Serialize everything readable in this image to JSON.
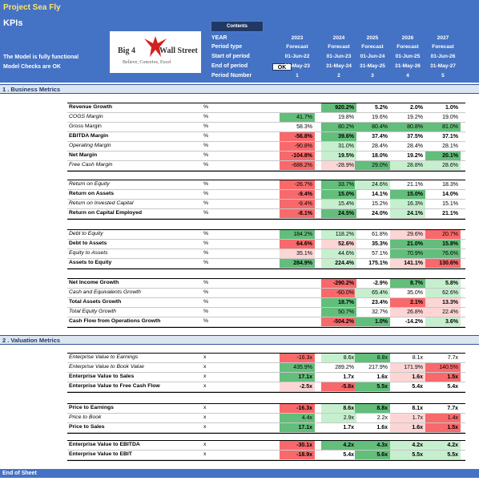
{
  "header": {
    "project": "Project Sea Fly",
    "title": "KPIs",
    "note1": "The Model is fully functional",
    "note2": "Model Checks are OK",
    "contents_button": "Contents",
    "ok_badge": "OK",
    "logo": {
      "left": "Big 4",
      "right": "Wall Street",
      "tagline": "Believe, Conceive, Excel"
    },
    "period_labels": [
      "YEAR",
      "Period type",
      "Start of period",
      "End of period",
      "Period Number"
    ],
    "periods": [
      {
        "year": "2023",
        "type": "Forecast",
        "start": "01-Jun-22",
        "end": "31-May-23",
        "num": "1"
      },
      {
        "year": "2024",
        "type": "Forecast",
        "start": "01-Jun-23",
        "end": "31-May-24",
        "num": "2"
      },
      {
        "year": "2025",
        "type": "Forecast",
        "start": "01-Jun-24",
        "end": "31-May-25",
        "num": "3"
      },
      {
        "year": "2026",
        "type": "Forecast",
        "start": "01-Jun-25",
        "end": "31-May-26",
        "num": "4"
      },
      {
        "year": "2027",
        "type": "Forecast",
        "start": "01-Jun-26",
        "end": "31-May-27",
        "num": "5"
      }
    ]
  },
  "colors": {
    "header_bg": "#4472c4",
    "title_gold": "#ffe36b",
    "good_strong": "#63be7b",
    "good_light": "#c6efce",
    "bad_strong": "#f8696b",
    "bad_light": "#fcd5d5"
  },
  "sections": [
    {
      "title": "1 .  Business Metrics",
      "blocks": [
        {
          "rows": [
            {
              "label": "Revenue Growth",
              "style": "b",
              "unit": "%",
              "values": [
                "",
                "920.2%",
                "5.2%",
                "2.0%",
                "1.0%"
              ],
              "fills": [
                "",
                "G",
                "",
                "",
                ""
              ]
            },
            {
              "label": "COGS Margin",
              "style": "i",
              "unit": "%",
              "values": [
                "41.7%",
                "19.8%",
                "19.6%",
                "19.2%",
                "19.0%"
              ],
              "fills": [
                "G",
                "",
                "",
                "",
                ""
              ]
            },
            {
              "label": "Gross Margin",
              "style": "n",
              "unit": "%",
              "values": [
                "58.3%",
                "80.2%",
                "80.4%",
                "80.8%",
                "81.0%"
              ],
              "fills": [
                "",
                "G",
                "G",
                "G",
                "G"
              ]
            },
            {
              "label": "EBITDA Margin",
              "style": "b",
              "unit": "%",
              "values": [
                "-56.8%",
                "39.6%",
                "37.4%",
                "37.5%",
                "37.1%"
              ],
              "fills": [
                "R",
                "G",
                "",
                "",
                ""
              ]
            },
            {
              "label": "Operating Margin",
              "style": "i",
              "unit": "%",
              "values": [
                "-90.8%",
                "31.0%",
                "28.4%",
                "28.4%",
                "28.1%"
              ],
              "fills": [
                "R",
                "g",
                "",
                "",
                ""
              ]
            },
            {
              "label": "Net Margin",
              "style": "b",
              "unit": "%",
              "values": [
                "-104.8%",
                "19.5%",
                "18.0%",
                "19.2%",
                "20.1%"
              ],
              "fills": [
                "R",
                "g",
                "",
                "",
                "G"
              ]
            },
            {
              "label": "Free Cash Margin",
              "style": "i",
              "unit": "%",
              "values": [
                "-688.2%",
                "-28.9%",
                "29.0%",
                "28.8%",
                "28.6%"
              ],
              "fills": [
                "R",
                "r",
                "G",
                "g",
                "g"
              ]
            }
          ]
        },
        {
          "rows": [
            {
              "label": "Return on Equity",
              "style": "i",
              "unit": "%",
              "values": [
                "-26.7%",
                "33.7%",
                "24.6%",
                "21.1%",
                "18.3%"
              ],
              "fills": [
                "R",
                "G",
                "g",
                "",
                ""
              ]
            },
            {
              "label": "Return on Assets",
              "style": "b",
              "unit": "%",
              "values": [
                "-9.4%",
                "15.0%",
                "14.1%",
                "15.0%",
                "14.0%"
              ],
              "fills": [
                "R",
                "G",
                "",
                "G",
                ""
              ]
            },
            {
              "label": "Return on Invested Capital",
              "style": "i",
              "unit": "%",
              "values": [
                "-9.4%",
                "15.4%",
                "15.2%",
                "16.3%",
                "15.1%"
              ],
              "fills": [
                "R",
                "g",
                "",
                "g",
                ""
              ]
            },
            {
              "label": "Return on Capital Employed",
              "style": "b",
              "unit": "%",
              "values": [
                "-8.1%",
                "24.5%",
                "24.0%",
                "24.1%",
                "21.1%"
              ],
              "fills": [
                "R",
                "G",
                "",
                "g",
                ""
              ]
            }
          ]
        },
        {
          "rows": [
            {
              "label": "Debt to Equity",
              "style": "i",
              "unit": "%",
              "values": [
                "184.2%",
                "118.2%",
                "61.8%",
                "29.6%",
                "20.7%"
              ],
              "fills": [
                "G",
                "g",
                "",
                "r",
                "R"
              ]
            },
            {
              "label": "Debt to Assets",
              "style": "b",
              "unit": "%",
              "values": [
                "64.6%",
                "52.6%",
                "35.3%",
                "21.0%",
                "15.8%"
              ],
              "fills": [
                "R",
                "r",
                "",
                "G",
                "G"
              ]
            },
            {
              "label": "Equity to Assets",
              "style": "i",
              "unit": "%",
              "values": [
                "35.1%",
                "44.6%",
                "57.1%",
                "70.9%",
                "76.6%"
              ],
              "fills": [
                "r",
                "g",
                "",
                "G",
                "G"
              ]
            },
            {
              "label": "Assets to Equity",
              "style": "b",
              "unit": "%",
              "values": [
                "284.9%",
                "224.4%",
                "175.1%",
                "141.1%",
                "130.6%"
              ],
              "fills": [
                "G",
                "g",
                "",
                "r",
                "R"
              ]
            }
          ]
        },
        {
          "rows": [
            {
              "label": "Net Income Growth",
              "style": "b",
              "unit": "%",
              "values": [
                "",
                "-290.2%",
                "-2.9%",
                "8.7%",
                "5.8%"
              ],
              "fills": [
                "",
                "R",
                "",
                "G",
                "g"
              ]
            },
            {
              "label": "Cash and Equivalents Growth",
              "style": "i",
              "unit": "%",
              "values": [
                "",
                "-60.0%",
                "65.4%",
                "35.0%",
                "62.6%"
              ],
              "fills": [
                "",
                "R",
                "g",
                "",
                "g"
              ]
            },
            {
              "label": "Total Assets Growth",
              "style": "b",
              "unit": "%",
              "values": [
                "",
                "18.7%",
                "23.4%",
                "2.1%",
                "13.3%"
              ],
              "fills": [
                "",
                "G",
                "",
                "R",
                "r"
              ]
            },
            {
              "label": "Total Equity Growth",
              "style": "i",
              "unit": "%",
              "values": [
                "",
                "50.7%",
                "32.7%",
                "26.8%",
                "22.4%"
              ],
              "fills": [
                "",
                "G",
                "",
                "r",
                "r"
              ]
            },
            {
              "label": "Cash Flow from Operations Growth",
              "style": "b",
              "unit": "%",
              "values": [
                "",
                "-504.2%",
                "1.0%",
                "-14.2%",
                "3.6%"
              ],
              "fills": [
                "",
                "R",
                "G",
                "",
                "g"
              ]
            }
          ]
        }
      ]
    },
    {
      "title": "2 .  Valuation Metrics",
      "blocks": [
        {
          "rows": [
            {
              "label": "Enterprise Value to Earnings",
              "style": "i",
              "unit": "x",
              "values": [
                "-16.3x",
                "8.6x",
                "8.8x",
                "8.1x",
                "7.7x"
              ],
              "fills": [
                "R",
                "g",
                "G",
                "",
                ""
              ]
            },
            {
              "label": "Enterprise Value to Book Value",
              "style": "i",
              "unit": "x",
              "values": [
                "435.9%",
                "289.2%",
                "217.9%",
                "171.9%",
                "140.5%"
              ],
              "fills": [
                "G",
                "",
                "",
                "r",
                "R"
              ]
            },
            {
              "label": "Enterprise Value to Sales",
              "style": "b",
              "unit": "x",
              "values": [
                "17.1x",
                "1.7x",
                "1.6x",
                "1.6x",
                "1.5x"
              ],
              "fills": [
                "G",
                "",
                "",
                "r",
                "R"
              ]
            },
            {
              "label": "Enterprise Value to Free Cash Flow",
              "style": "b",
              "unit": "x",
              "values": [
                "-2.5x",
                "-5.8x",
                "5.5x",
                "5.4x",
                "5.4x"
              ],
              "fills": [
                "r",
                "R",
                "G",
                "",
                ""
              ]
            }
          ]
        },
        {
          "rows": [
            {
              "label": "Price to Earnings",
              "style": "b",
              "unit": "x",
              "values": [
                "-16.3x",
                "8.6x",
                "8.8x",
                "8.1x",
                "7.7x"
              ],
              "fills": [
                "R",
                "g",
                "G",
                "",
                ""
              ]
            },
            {
              "label": "Price to Book",
              "style": "i",
              "unit": "x",
              "values": [
                "4.4x",
                "2.9x",
                "2.2x",
                "1.7x",
                "1.4x"
              ],
              "fills": [
                "G",
                "g",
                "",
                "r",
                "R"
              ]
            },
            {
              "label": "Price to Sales",
              "style": "b",
              "unit": "x",
              "values": [
                "17.1x",
                "1.7x",
                "1.6x",
                "1.6x",
                "1.5x"
              ],
              "fills": [
                "G",
                "",
                "",
                "r",
                "R"
              ]
            }
          ]
        },
        {
          "rows": [
            {
              "label": "Enterprise Value to EBITDA",
              "style": "b",
              "unit": "x",
              "values": [
                "-30.1x",
                "4.2x",
                "4.3x",
                "4.2x",
                "4.2x"
              ],
              "fills": [
                "R",
                "G",
                "G",
                "g",
                "g"
              ]
            },
            {
              "label": "Enterprise Value to EBIT",
              "style": "b",
              "unit": "x",
              "values": [
                "-18.9x",
                "5.4x",
                "5.6x",
                "5.5x",
                "5.5x"
              ],
              "fills": [
                "R",
                "",
                "G",
                "g",
                "g"
              ]
            }
          ]
        }
      ]
    }
  ],
  "footer": "End of Sheet"
}
